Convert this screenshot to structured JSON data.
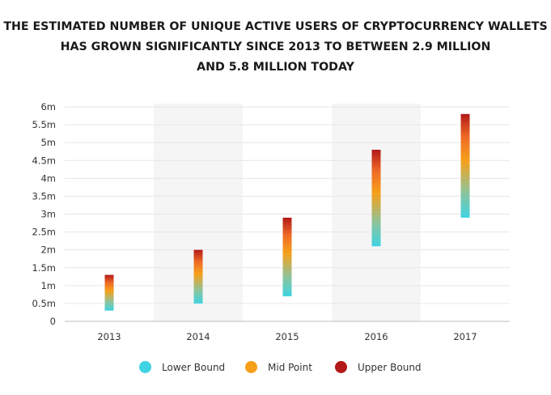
{
  "title_lines": [
    "THE ESTIMATED NUMBER OF UNIQUE ACTIVE USERS OF CRYPTOCURRENCY WALLETS",
    "HAS GROWN SIGNIFICANTLY SINCE 2013 TO BETWEEN 2.9 MILLION",
    "AND 5.8 MILLION TODAY"
  ],
  "legend": [
    {
      "label": "Lower Bound",
      "color": "#3ed3e3"
    },
    {
      "label": "Mid Point",
      "color": "#f6a01a"
    },
    {
      "label": "Upper Bound",
      "color": "#b31818"
    }
  ],
  "chart_data": {
    "type": "range-bar",
    "categories": [
      "2013",
      "2014",
      "2015",
      "2016",
      "2017"
    ],
    "series": [
      {
        "name": "Lower Bound",
        "values": [
          0.3,
          0.5,
          0.7,
          2.1,
          2.9
        ]
      },
      {
        "name": "Upper Bound",
        "values": [
          1.3,
          2.0,
          2.9,
          4.8,
          5.8
        ]
      }
    ],
    "ylim": [
      0,
      6
    ],
    "yticks": [
      "0",
      "0.5m",
      "1m",
      "1.5m",
      "2m",
      "2.5m",
      "3m",
      "3.5m",
      "4m",
      "4.5m",
      "5m",
      "5.5m",
      "6m"
    ],
    "grid": true,
    "alternating_bands": true,
    "legend_position": "bottom-center"
  }
}
